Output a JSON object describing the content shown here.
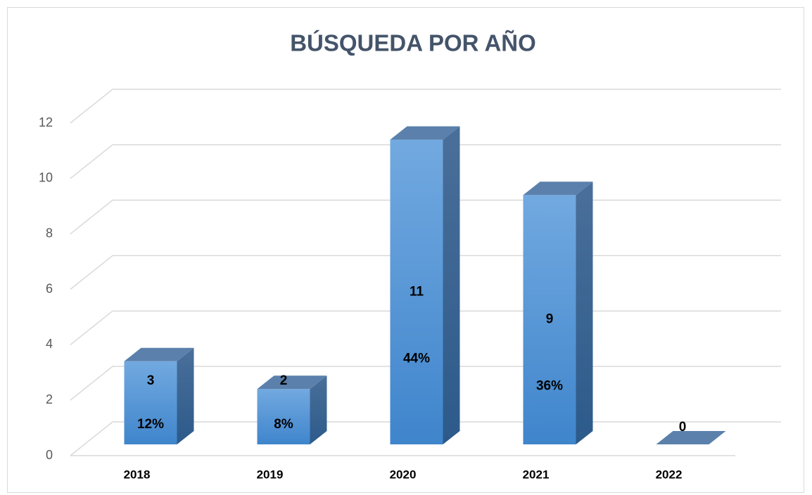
{
  "chart_data": {
    "type": "bar3d",
    "title": "BÚSQUEDA POR AÑO",
    "categories": [
      "2018",
      "2019",
      "2020",
      "2021",
      "2022"
    ],
    "values": [
      3,
      2,
      11,
      9,
      0
    ],
    "percent_labels": [
      "12%",
      "8%",
      "44%",
      "36%",
      null
    ],
    "color": "#4a8fd6",
    "ylim": [
      0,
      12
    ],
    "yticks": [
      0,
      2,
      4,
      6,
      8,
      10,
      12
    ],
    "grid": true
  }
}
